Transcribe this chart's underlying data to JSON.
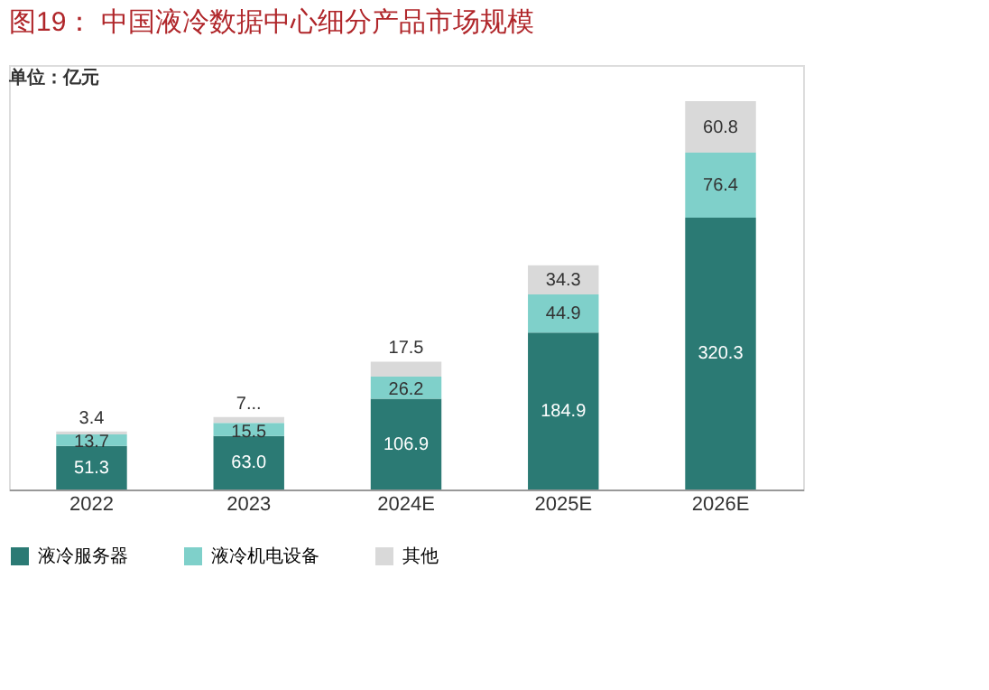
{
  "chart_data": {
    "type": "bar",
    "title": "图19：  中国液冷数据中心细分产品市场规模",
    "stacked": true,
    "data_labels": true,
    "legend": "bottom",
    "grid": false,
    "annotations": [
      "单位：亿元"
    ],
    "categories": [
      "2022",
      "2023",
      "2024E",
      "2025E",
      "2026E"
    ],
    "series": [
      {
        "name": "液冷服务器",
        "color": "#2b7a74",
        "values": [
          51.3,
          63.0,
          106.9,
          184.9,
          320.3
        ],
        "value_labels": [
          "51.3",
          "63.0",
          "106.9",
          "184.9",
          "320.3"
        ]
      },
      {
        "name": "液冷机电设备",
        "color": "#7fd0ca",
        "values": [
          13.7,
          15.5,
          26.2,
          44.9,
          76.4
        ],
        "value_labels": [
          "13.7",
          "15.5",
          "26.2",
          "44.9",
          "76.4"
        ]
      },
      {
        "name": "其他",
        "color": "#d9d9d9",
        "values": [
          3.4,
          7,
          17.5,
          34.3,
          60.8
        ],
        "value_labels": [
          "3.4",
          "7...",
          "17.5",
          "34.3",
          "60.8"
        ]
      }
    ]
  }
}
